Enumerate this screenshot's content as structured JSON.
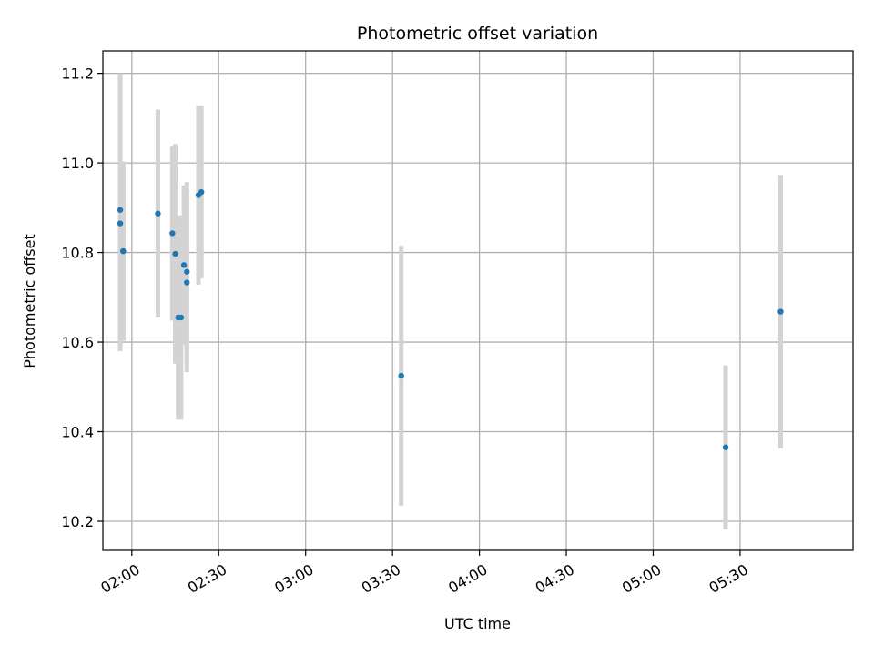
{
  "chart_data": {
    "type": "scatter",
    "title": "Photometric offset variation",
    "xlabel": "UTC time",
    "ylabel": "Photometric offset",
    "xlim": [
      "01:50",
      "06:09"
    ],
    "ylim": [
      10.135,
      11.25
    ],
    "x_ticks": [
      "02:00",
      "02:30",
      "03:00",
      "03:30",
      "04:00",
      "04:30",
      "05:00",
      "05:30"
    ],
    "y_ticks": [
      "10.2",
      "10.4",
      "10.6",
      "10.8",
      "11.0",
      "11.2"
    ],
    "grid": true,
    "colors": {
      "points": "#1f77b4",
      "errorbars": "#d3d3d3",
      "grid": "#b0b0b0"
    },
    "points": [
      {
        "x": "01:56",
        "y": 10.895,
        "err": 0.305
      },
      {
        "x": "01:56",
        "y": 10.865,
        "err": 0.285
      },
      {
        "x": "01:57",
        "y": 10.803,
        "err": 0.2
      },
      {
        "x": "01:57",
        "y": 10.803,
        "err": 0.2
      },
      {
        "x": "02:09",
        "y": 10.887,
        "err": 0.232
      },
      {
        "x": "02:14",
        "y": 10.843,
        "err": 0.195
      },
      {
        "x": "02:15",
        "y": 10.797,
        "err": 0.245
      },
      {
        "x": "02:16",
        "y": 10.655,
        "err": 0.228
      },
      {
        "x": "02:17",
        "y": 10.655,
        "err": 0.228
      },
      {
        "x": "02:18",
        "y": 10.772,
        "err": 0.178
      },
      {
        "x": "02:19",
        "y": 10.733,
        "err": 0.2
      },
      {
        "x": "02:19",
        "y": 10.757,
        "err": 0.2
      },
      {
        "x": "02:23",
        "y": 10.928,
        "err": 0.2
      },
      {
        "x": "02:24",
        "y": 10.935,
        "err": 0.193
      },
      {
        "x": "03:33",
        "y": 10.525,
        "err": 0.29
      },
      {
        "x": "05:25",
        "y": 10.365,
        "err": 0.183
      },
      {
        "x": "05:44",
        "y": 10.668,
        "err": 0.305
      }
    ]
  }
}
